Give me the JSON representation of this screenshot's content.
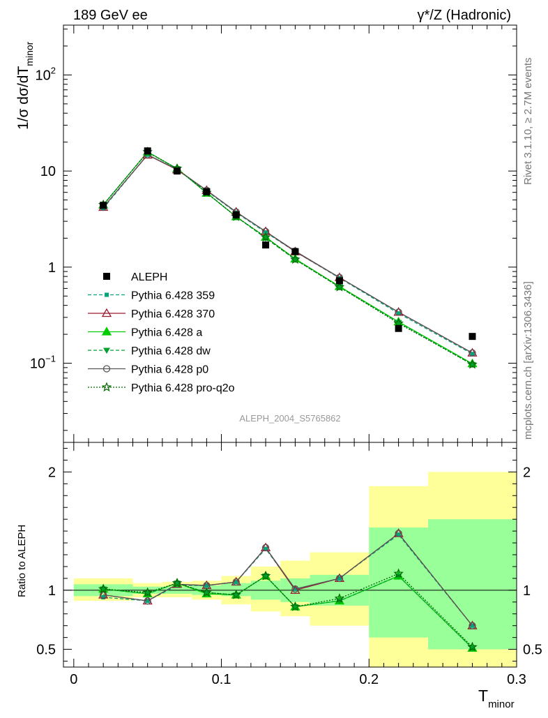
{
  "header": {
    "energy_label": "189 GeV ee",
    "process_label": "γ*/Z (Hadronic)"
  },
  "side_labels": {
    "rivet": "Rivet 3.1.10, ≥ 2.7M events",
    "mcplots": "mcplots.cern.ch [arXiv:1306.3436]"
  },
  "analysis_label": "ALEPH_2004_S5765862",
  "colors": {
    "data": "#000000",
    "p359": "#00a37a",
    "p370": "#9b1b30",
    "a": "#00cc00",
    "dw": "#00a030",
    "p0": "#555555",
    "pro_q2o": "#006600",
    "band_inner": "#99ff99",
    "band_outer": "#ffff99"
  },
  "chart_data": [
    {
      "type": "line",
      "panel": "main",
      "ylabel_main": "1/σ  dσ/dT",
      "ylabel_sub": "minor",
      "yscale": "log",
      "ylim": [
        0.015,
        330
      ],
      "xlim": [
        -0.007,
        0.3
      ],
      "y_ticks": [
        {
          "value": 0.1,
          "base": "10",
          "exp": "−1"
        },
        {
          "value": 1,
          "base": "1",
          "exp": ""
        },
        {
          "value": 10,
          "base": "10",
          "exp": ""
        },
        {
          "value": 100,
          "base": "10",
          "exp": "2"
        }
      ],
      "legend_position": "middle-left",
      "x": [
        0.02,
        0.05,
        0.07,
        0.09,
        0.11,
        0.13,
        0.15,
        0.18,
        0.22,
        0.27
      ],
      "data_series": {
        "name": "ALEPH",
        "values": [
          4.4,
          16.2,
          10.0,
          6.1,
          3.5,
          1.7,
          1.45,
          0.72,
          0.23,
          0.19
        ]
      },
      "series": [
        {
          "name": "Pythia 6.428 359",
          "color_key": "p359",
          "dash": "5,3",
          "marker": "square",
          "values": [
            4.1,
            14.8,
            10.4,
            6.2,
            3.7,
            2.3,
            1.45,
            0.77,
            0.33,
            0.125
          ]
        },
        {
          "name": "Pythia 6.428 370",
          "color_key": "p370",
          "dash": "",
          "marker": "triangle-open",
          "values": [
            4.2,
            14.7,
            10.3,
            6.3,
            3.75,
            2.35,
            1.45,
            0.78,
            0.34,
            0.128
          ]
        },
        {
          "name": "Pythia 6.428 a",
          "color_key": "a",
          "dash": "",
          "marker": "triangle",
          "values": [
            4.45,
            15.8,
            10.6,
            5.9,
            3.35,
            2.05,
            1.22,
            0.63,
            0.27,
            0.099
          ]
        },
        {
          "name": "Pythia 6.428 dw",
          "color_key": "dw",
          "dash": "5,3",
          "marker": "triangle-down",
          "values": [
            4.45,
            15.7,
            10.6,
            5.95,
            3.35,
            2.0,
            1.2,
            0.62,
            0.265,
            0.097
          ]
        },
        {
          "name": "Pythia 6.428 p0",
          "color_key": "p0",
          "dash": "",
          "marker": "circle-open",
          "values": [
            4.2,
            14.8,
            10.4,
            6.3,
            3.75,
            2.35,
            1.47,
            0.78,
            0.34,
            0.128
          ]
        },
        {
          "name": "Pythia 6.428 pro-q2o",
          "color_key": "pro_q2o",
          "dash": "2,2",
          "marker": "star",
          "values": [
            4.45,
            15.8,
            10.6,
            5.95,
            3.35,
            2.05,
            1.2,
            0.62,
            0.26,
            0.097
          ]
        }
      ]
    },
    {
      "type": "line",
      "panel": "ratio",
      "ylabel": "Ratio to ALEPH",
      "xlabel_main": "T",
      "xlabel_sub": "minor",
      "ylim": [
        0.35,
        2.25
      ],
      "xlim": [
        -0.007,
        0.3
      ],
      "x_ticks": [
        {
          "value": 0,
          "label": "0"
        },
        {
          "value": 0.1,
          "label": "0.1"
        },
        {
          "value": 0.2,
          "label": "0.2"
        },
        {
          "value": 0.3,
          "label": "0.3"
        }
      ],
      "y_ticks": [
        {
          "value": 0.5,
          "label": "0.5"
        },
        {
          "value": 1,
          "label": "1"
        },
        {
          "value": 2,
          "label": "2"
        }
      ],
      "bands": [
        {
          "x0": 0.0,
          "x1": 0.04,
          "inner": [
            0.95,
            1.05
          ],
          "outer": [
            0.91,
            1.1
          ]
        },
        {
          "x0": 0.04,
          "x1": 0.06,
          "inner": [
            0.97,
            1.03
          ],
          "outer": [
            0.94,
            1.06
          ]
        },
        {
          "x0": 0.06,
          "x1": 0.08,
          "inner": [
            0.97,
            1.03
          ],
          "outer": [
            0.94,
            1.07
          ]
        },
        {
          "x0": 0.08,
          "x1": 0.1,
          "inner": [
            0.96,
            1.04
          ],
          "outer": [
            0.92,
            1.08
          ]
        },
        {
          "x0": 0.1,
          "x1": 0.12,
          "inner": [
            0.95,
            1.06
          ],
          "outer": [
            0.88,
            1.12
          ]
        },
        {
          "x0": 0.12,
          "x1": 0.14,
          "inner": [
            0.92,
            1.08
          ],
          "outer": [
            0.82,
            1.2
          ]
        },
        {
          "x0": 0.14,
          "x1": 0.16,
          "inner": [
            0.9,
            1.1
          ],
          "outer": [
            0.78,
            1.25
          ]
        },
        {
          "x0": 0.16,
          "x1": 0.2,
          "inner": [
            0.87,
            1.13
          ],
          "outer": [
            0.7,
            1.32
          ]
        },
        {
          "x0": 0.2,
          "x1": 0.24,
          "inner": [
            0.6,
            1.53
          ],
          "outer": [
            0.35,
            1.88
          ]
        },
        {
          "x0": 0.24,
          "x1": 0.3,
          "inner": [
            0.5,
            1.6
          ],
          "outer": [
            0.35,
            2.0
          ]
        }
      ],
      "x": [
        0.02,
        0.05,
        0.07,
        0.09,
        0.11,
        0.13,
        0.15,
        0.18,
        0.22,
        0.27
      ],
      "series": [
        {
          "name": "Pythia 6.428 359",
          "color_key": "p359",
          "dash": "5,3",
          "marker": "square",
          "values": [
            0.94,
            0.91,
            1.04,
            1.04,
            1.07,
            1.35,
            1.01,
            1.1,
            1.47,
            0.7
          ]
        },
        {
          "name": "Pythia 6.428 370",
          "color_key": "p370",
          "dash": "",
          "marker": "triangle-open",
          "values": [
            0.96,
            0.91,
            1.05,
            1.04,
            1.07,
            1.36,
            1.0,
            1.1,
            1.48,
            0.7
          ]
        },
        {
          "name": "Pythia 6.428 a",
          "color_key": "a",
          "dash": "",
          "marker": "triangle",
          "values": [
            1.01,
            0.97,
            1.06,
            0.97,
            0.96,
            1.12,
            0.86,
            0.91,
            1.12,
            0.51
          ]
        },
        {
          "name": "Pythia 6.428 dw",
          "color_key": "dw",
          "dash": "5,3",
          "marker": "triangle-down",
          "values": [
            1.01,
            0.97,
            1.06,
            0.98,
            0.96,
            1.12,
            0.86,
            0.91,
            1.12,
            0.51
          ]
        },
        {
          "name": "Pythia 6.428 p0",
          "color_key": "p0",
          "dash": "",
          "marker": "circle-open",
          "values": [
            0.96,
            0.91,
            1.05,
            1.04,
            1.07,
            1.36,
            1.01,
            1.1,
            1.48,
            0.7
          ]
        },
        {
          "name": "Pythia 6.428 pro-q2o",
          "color_key": "pro_q2o",
          "dash": "2,2",
          "marker": "star",
          "values": [
            1.01,
            0.98,
            1.06,
            0.98,
            0.96,
            1.12,
            0.86,
            0.93,
            1.14,
            0.52
          ]
        }
      ]
    }
  ]
}
